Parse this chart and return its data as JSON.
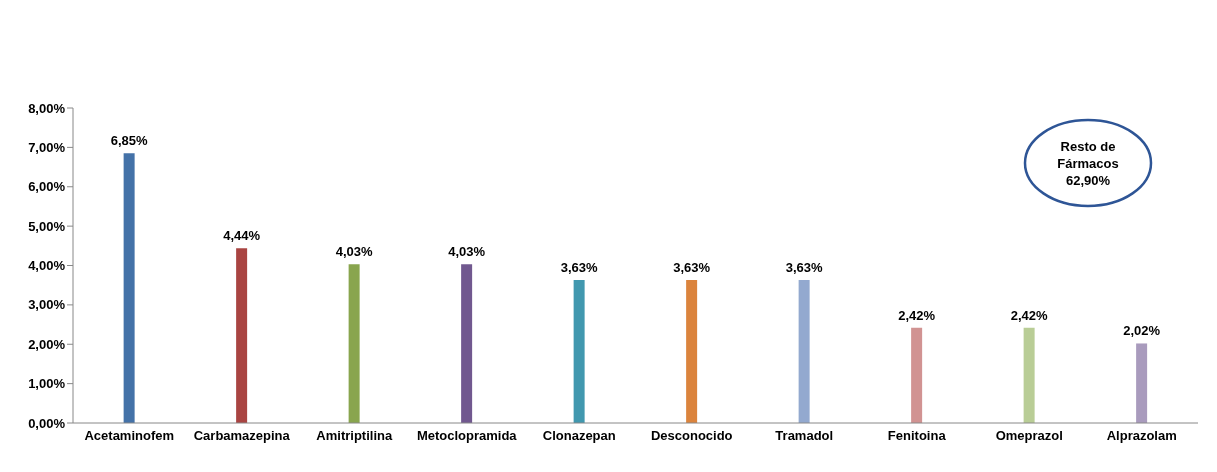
{
  "chart_data": {
    "type": "bar",
    "categories": [
      "Acetaminofem",
      "Carbamazepina",
      "Amitriptilina",
      "Metoclopramida",
      "Clonazepan",
      "Desconocido",
      "Tramadol",
      "Fenitoina",
      "Omeprazol",
      "Alprazolam"
    ],
    "values": [
      6.85,
      4.44,
      4.03,
      4.03,
      3.63,
      3.63,
      3.63,
      2.42,
      2.42,
      2.02
    ],
    "colors": [
      "#4472a8",
      "#a94442",
      "#89a54e",
      "#71588f",
      "#4198af",
      "#db843d",
      "#93a9cf",
      "#d19392",
      "#b9cd96",
      "#a99bbd"
    ],
    "value_labels": [
      "6,85%",
      "4,44%",
      "4,03%",
      "4,03%",
      "3,63%",
      "3,63%",
      "3,63%",
      "2,42%",
      "2,42%",
      "2,02%"
    ],
    "ylim": [
      0,
      8
    ],
    "yticks": [
      {
        "value": 0,
        "label": "0,00%"
      },
      {
        "value": 1,
        "label": "1,00%"
      },
      {
        "value": 2,
        "label": "2,00%"
      },
      {
        "value": 3,
        "label": "3,00%"
      },
      {
        "value": 4,
        "label": "4,00%"
      },
      {
        "value": 5,
        "label": "5,00%"
      },
      {
        "value": 6,
        "label": "6,00%"
      },
      {
        "value": 7,
        "label": "7,00%"
      },
      {
        "value": 8,
        "label": "8,00%"
      }
    ],
    "grid": false,
    "annotations": [
      "Resto de Fármacos 62,90%"
    ]
  }
}
